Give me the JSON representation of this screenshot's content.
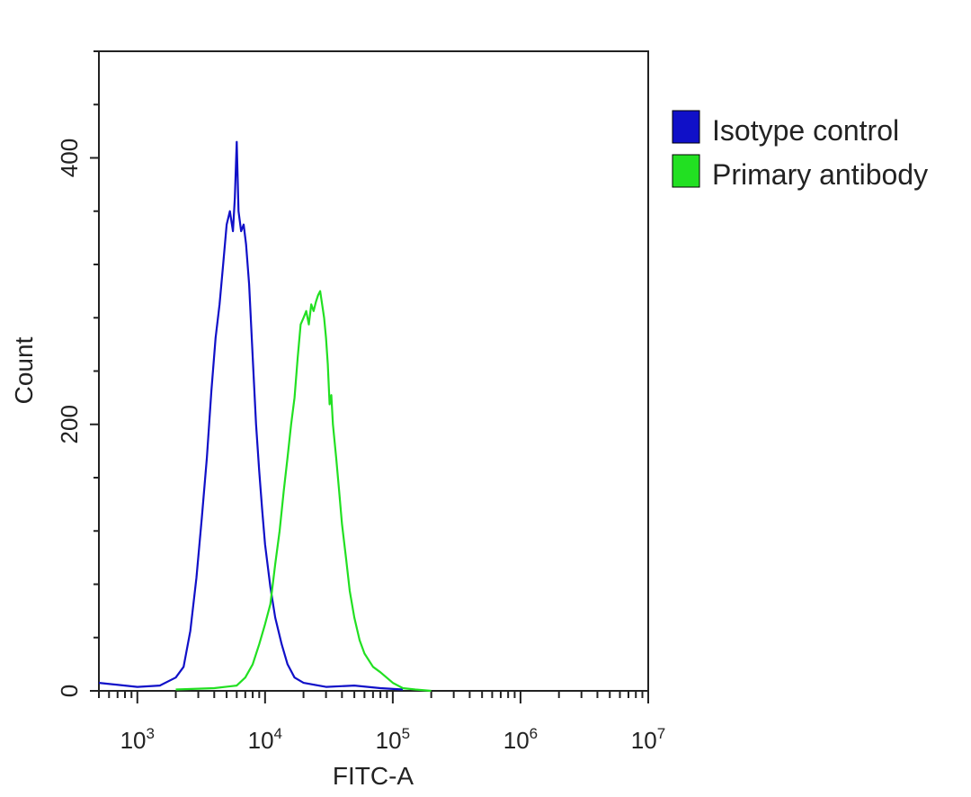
{
  "chart_data": {
    "type": "histogram",
    "xlabel": "FITC-A",
    "ylabel": "Count",
    "x_scale": "log",
    "xlim": [
      500,
      10000000
    ],
    "ylim": [
      0,
      480
    ],
    "x_ticks": [
      {
        "value": 1000,
        "base": "10",
        "exp": "3"
      },
      {
        "value": 10000,
        "base": "10",
        "exp": "4"
      },
      {
        "value": 100000,
        "base": "10",
        "exp": "5"
      },
      {
        "value": 1000000,
        "base": "10",
        "exp": "6"
      },
      {
        "value": 10000000,
        "base": "10",
        "exp": "7"
      }
    ],
    "y_ticks": [
      0,
      200,
      400
    ],
    "legend_position": "right",
    "series": [
      {
        "name": "Isotype control",
        "color": "#1010c8",
        "points": [
          [
            500,
            6
          ],
          [
            1000,
            3
          ],
          [
            1500,
            4
          ],
          [
            2000,
            10
          ],
          [
            2300,
            18
          ],
          [
            2600,
            45
          ],
          [
            2900,
            85
          ],
          [
            3200,
            130
          ],
          [
            3500,
            175
          ],
          [
            3800,
            225
          ],
          [
            4100,
            265
          ],
          [
            4400,
            290
          ],
          [
            4700,
            320
          ],
          [
            5000,
            350
          ],
          [
            5300,
            360
          ],
          [
            5600,
            345
          ],
          [
            5800,
            370
          ],
          [
            6000,
            412
          ],
          [
            6200,
            360
          ],
          [
            6500,
            345
          ],
          [
            6800,
            350
          ],
          [
            7100,
            335
          ],
          [
            7500,
            305
          ],
          [
            8000,
            250
          ],
          [
            8500,
            200
          ],
          [
            9000,
            165
          ],
          [
            9500,
            135
          ],
          [
            10000,
            110
          ],
          [
            11000,
            78
          ],
          [
            12000,
            55
          ],
          [
            13500,
            35
          ],
          [
            15000,
            20
          ],
          [
            17000,
            10
          ],
          [
            20000,
            6
          ],
          [
            30000,
            3
          ],
          [
            50000,
            4
          ],
          [
            80000,
            2
          ],
          [
            120000,
            1
          ]
        ]
      },
      {
        "name": "Primary antibody",
        "color": "#22e022",
        "points": [
          [
            2000,
            1
          ],
          [
            4000,
            2
          ],
          [
            6000,
            4
          ],
          [
            7000,
            10
          ],
          [
            8000,
            20
          ],
          [
            9000,
            35
          ],
          [
            10000,
            50
          ],
          [
            11000,
            65
          ],
          [
            12000,
            95
          ],
          [
            13000,
            120
          ],
          [
            14000,
            150
          ],
          [
            15000,
            175
          ],
          [
            16000,
            200
          ],
          [
            17000,
            220
          ],
          [
            18000,
            250
          ],
          [
            19000,
            275
          ],
          [
            20000,
            280
          ],
          [
            21000,
            285
          ],
          [
            22000,
            275
          ],
          [
            23000,
            290
          ],
          [
            24000,
            285
          ],
          [
            25000,
            292
          ],
          [
            26000,
            297
          ],
          [
            27000,
            300
          ],
          [
            28000,
            290
          ],
          [
            29000,
            280
          ],
          [
            30000,
            265
          ],
          [
            31000,
            245
          ],
          [
            32000,
            215
          ],
          [
            33000,
            222
          ],
          [
            34000,
            200
          ],
          [
            36000,
            175
          ],
          [
            38000,
            150
          ],
          [
            40000,
            125
          ],
          [
            43000,
            100
          ],
          [
            46000,
            75
          ],
          [
            50000,
            55
          ],
          [
            55000,
            38
          ],
          [
            60000,
            28
          ],
          [
            70000,
            18
          ],
          [
            80000,
            14
          ],
          [
            100000,
            6
          ],
          [
            120000,
            2
          ],
          [
            150000,
            1
          ],
          [
            200000,
            0
          ]
        ]
      }
    ]
  }
}
